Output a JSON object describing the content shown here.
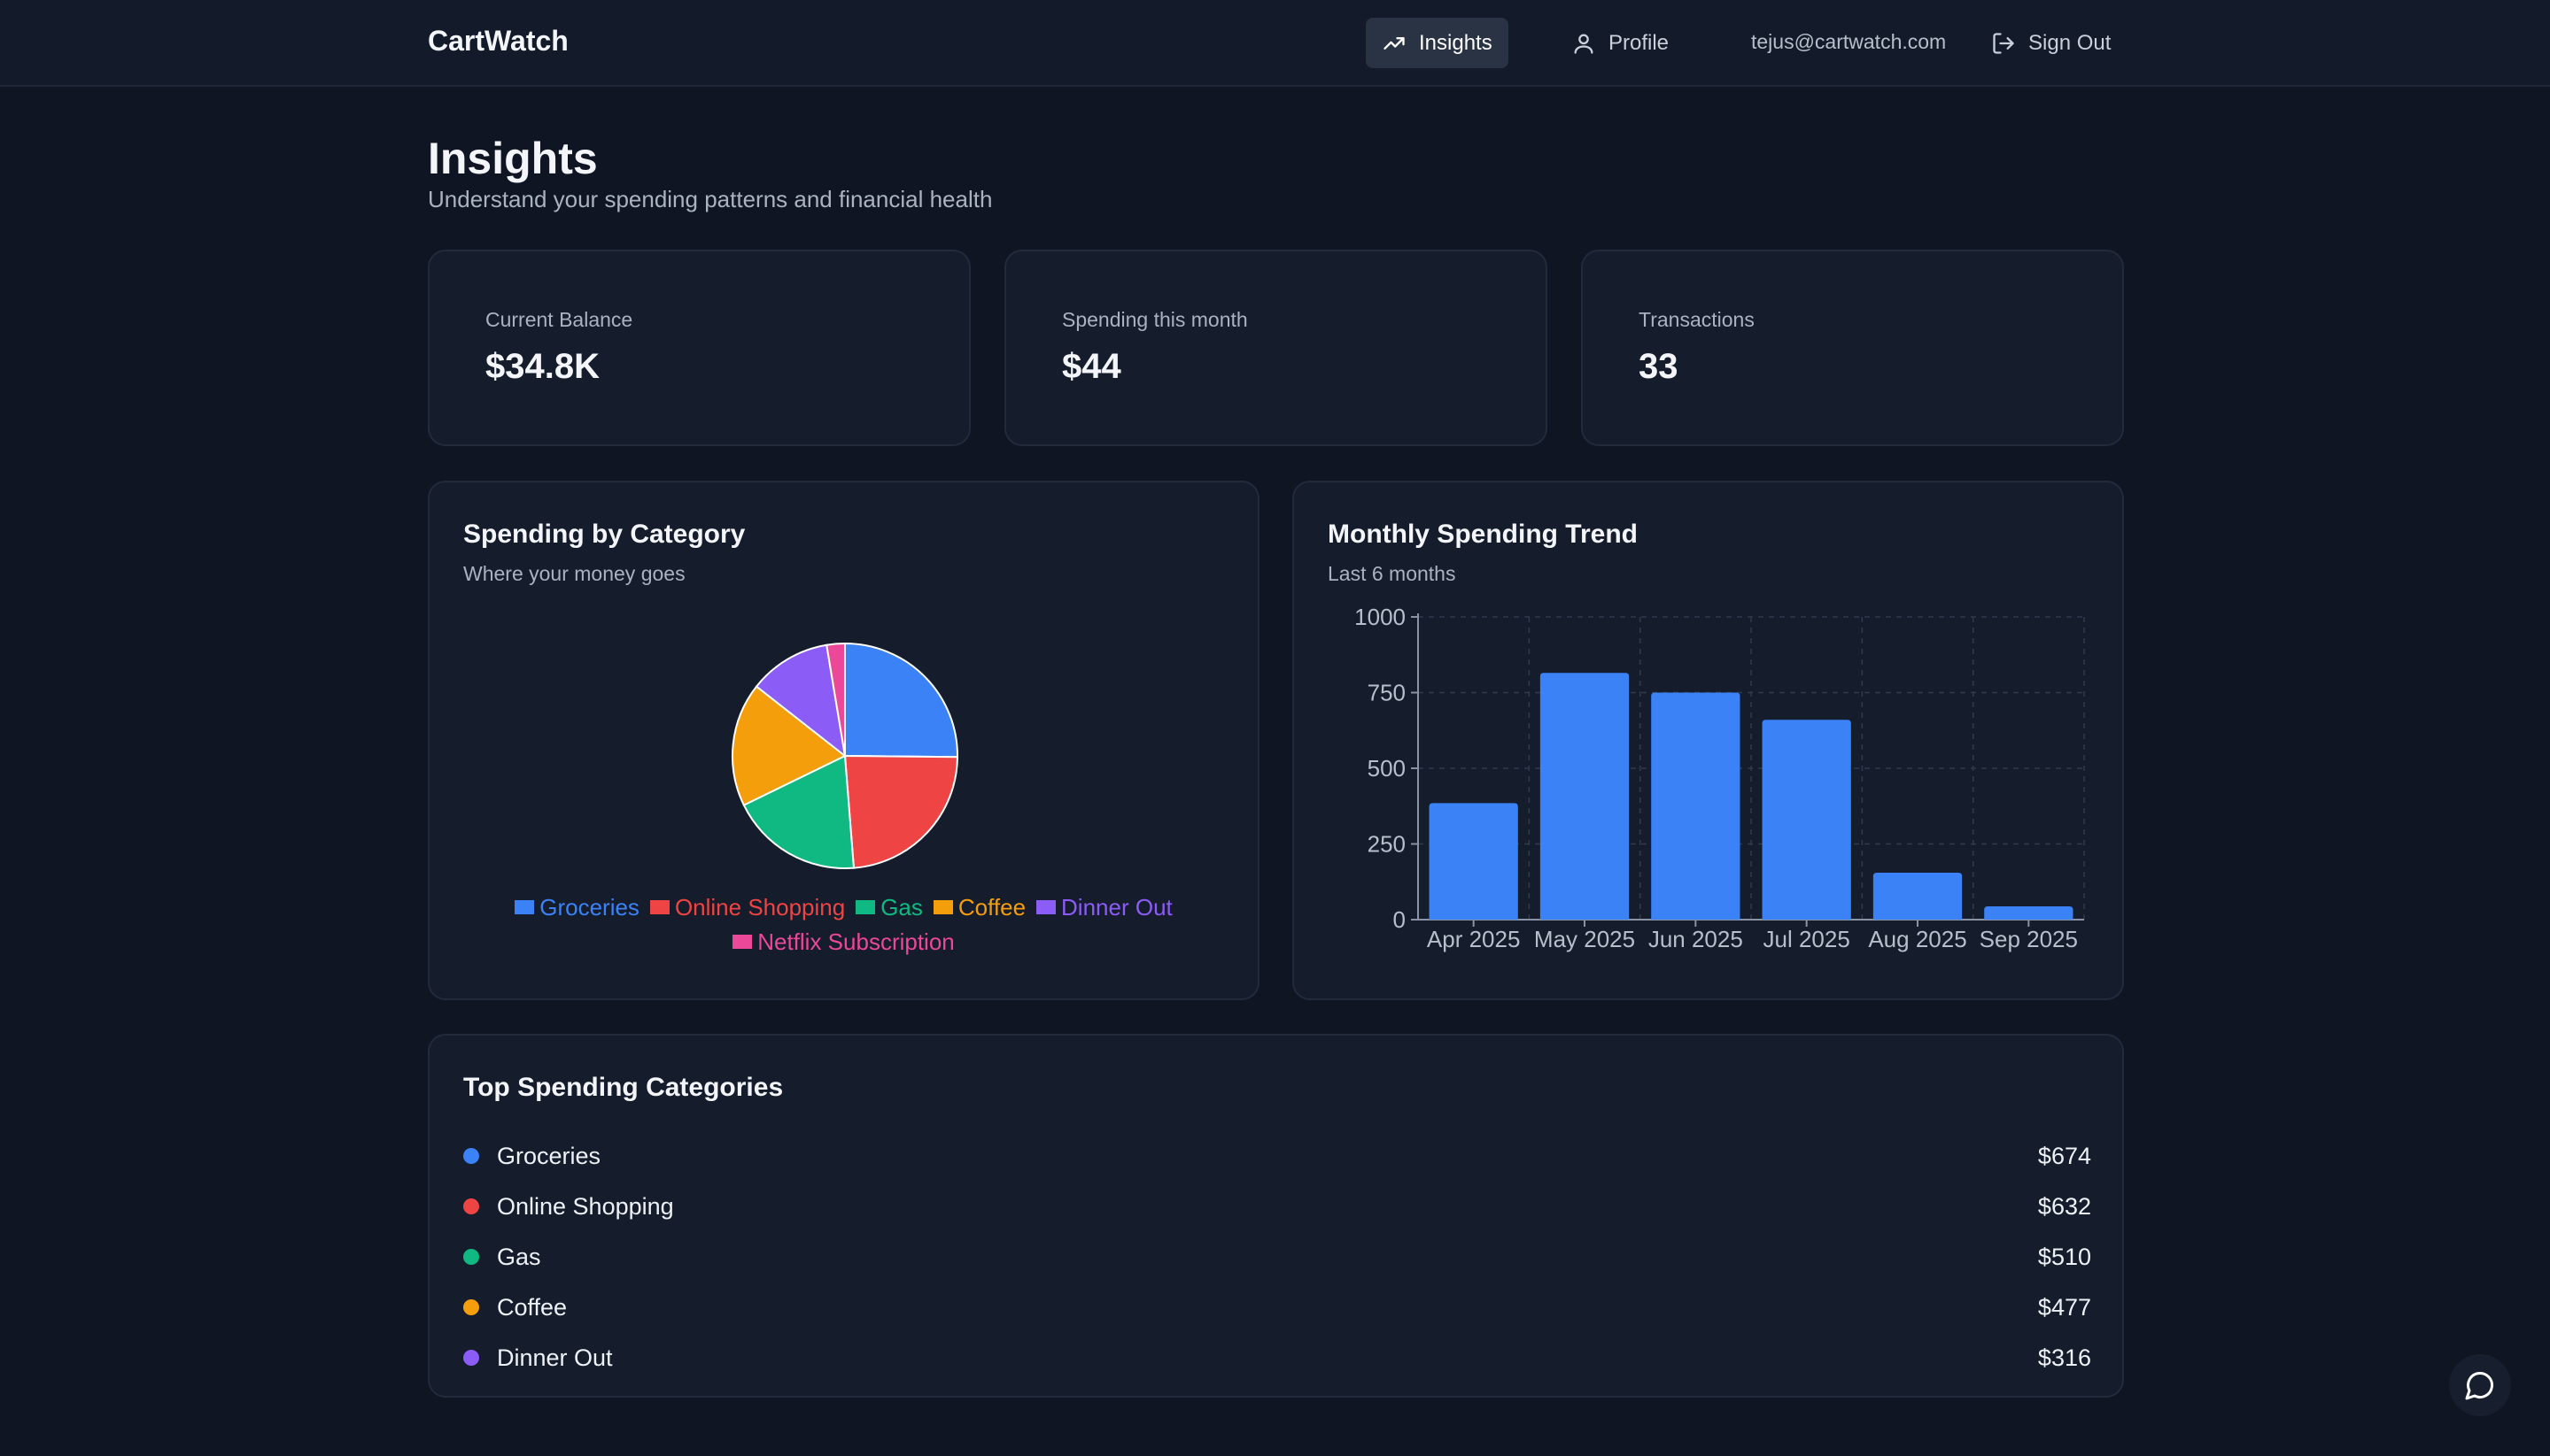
{
  "nav": {
    "brand": "CartWatch",
    "insights_label": "Insights",
    "profile_label": "Profile",
    "email": "tejus@cartwatch.com",
    "signout_label": "Sign Out"
  },
  "page": {
    "title": "Insights",
    "subtitle": "Understand your spending patterns and financial health"
  },
  "stats": [
    {
      "label": "Current Balance",
      "value": "$34.8K"
    },
    {
      "label": "Spending this month",
      "value": "$44"
    },
    {
      "label": "Transactions",
      "value": "33"
    }
  ],
  "category_card": {
    "title": "Spending by Category",
    "subtitle": "Where your money goes"
  },
  "trend_card": {
    "title": "Monthly Spending Trend",
    "subtitle": "Last 6 months"
  },
  "top_card": {
    "title": "Top Spending Categories",
    "rows": [
      {
        "label": "Groceries",
        "value": "$674",
        "color": "#3b82f6"
      },
      {
        "label": "Online Shopping",
        "value": "$632",
        "color": "#ef4444"
      },
      {
        "label": "Gas",
        "value": "$510",
        "color": "#10b981"
      },
      {
        "label": "Coffee",
        "value": "$477",
        "color": "#f59e0b"
      },
      {
        "label": "Dinner Out",
        "value": "$316",
        "color": "#8b5cf6"
      }
    ]
  },
  "chart_data": [
    {
      "type": "pie",
      "categories": [
        "Groceries",
        "Online Shopping",
        "Gas",
        "Coffee",
        "Dinner Out",
        "Netflix Subscription"
      ],
      "values": [
        674,
        632,
        510,
        477,
        316,
        70
      ],
      "colors": [
        "#3b82f6",
        "#ef4444",
        "#10b981",
        "#f59e0b",
        "#8b5cf6",
        "#ec4899"
      ],
      "legend": "bottom"
    },
    {
      "type": "bar",
      "categories": [
        "Apr 2025",
        "May 2025",
        "Jun 2025",
        "Jul 2025",
        "Aug 2025",
        "Sep 2025"
      ],
      "values": [
        385,
        815,
        750,
        660,
        155,
        44
      ],
      "ylim": [
        0,
        1000
      ],
      "yticks": [
        0,
        250,
        500,
        750,
        1000
      ],
      "grid": true,
      "color": "#3b82f6"
    }
  ],
  "icons": {
    "insights": "trending-up-icon",
    "profile": "user-icon",
    "signout": "log-out-icon",
    "chat": "chat-bubble-icon"
  }
}
